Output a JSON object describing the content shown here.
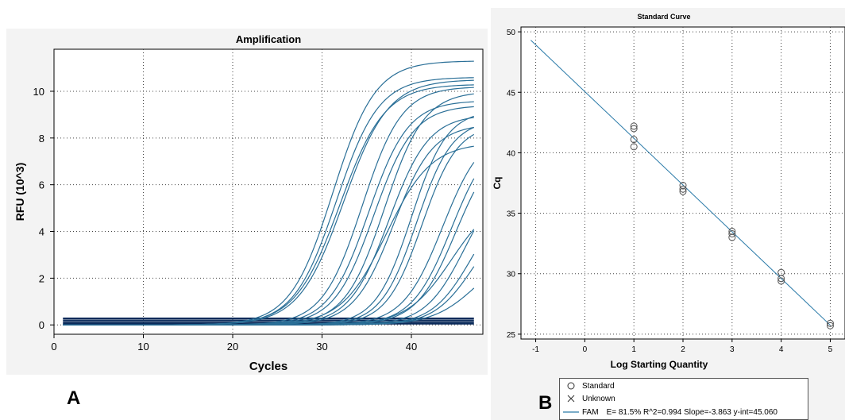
{
  "chart_data": [
    {
      "type": "line",
      "title": "Amplification",
      "xlabel": "Cycles",
      "ylabel": "RFU (10^3)",
      "xlim": [
        0,
        48
      ],
      "ylim": [
        -0.4,
        11.8
      ],
      "xticks": [
        0,
        10,
        20,
        30,
        40
      ],
      "yticks": [
        0,
        2,
        4,
        6,
        8,
        10
      ],
      "grid": true,
      "line_color": "#2a6f97",
      "baseline_color": "#0a2a5a",
      "curves": [
        {
          "midpoint": 31.2,
          "plateau": 11.3,
          "steepness": 0.42
        },
        {
          "midpoint": 31.6,
          "plateau": 10.6,
          "steepness": 0.42
        },
        {
          "midpoint": 32.0,
          "plateau": 10.3,
          "steepness": 0.4
        },
        {
          "midpoint": 32.4,
          "plateau": 10.5,
          "steepness": 0.4
        },
        {
          "midpoint": 34.5,
          "plateau": 10.2,
          "steepness": 0.45
        },
        {
          "midpoint": 35.2,
          "plateau": 9.6,
          "steepness": 0.45
        },
        {
          "midpoint": 35.8,
          "plateau": 9.4,
          "steepness": 0.45
        },
        {
          "midpoint": 37.0,
          "plateau": 10.0,
          "steepness": 0.45
        },
        {
          "midpoint": 37.5,
          "plateau": 9.0,
          "steepness": 0.45
        },
        {
          "midpoint": 38.0,
          "plateau": 8.6,
          "steepness": 0.45
        },
        {
          "midpoint": 37.2,
          "plateau": 7.8,
          "steepness": 0.4
        },
        {
          "midpoint": 40.0,
          "plateau": 9.2,
          "steepness": 0.5
        },
        {
          "midpoint": 40.6,
          "plateau": 8.8,
          "steepness": 0.5
        },
        {
          "midpoint": 41.2,
          "plateau": 8.6,
          "steepness": 0.5
        },
        {
          "midpoint": 43.5,
          "plateau": 8.4,
          "steepness": 0.45
        },
        {
          "midpoint": 44.5,
          "plateau": 8.3,
          "steepness": 0.45
        },
        {
          "midpoint": 45.0,
          "plateau": 8.0,
          "steepness": 0.45
        },
        {
          "midpoint": 44.5,
          "plateau": 5.6,
          "steepness": 0.4
        },
        {
          "midpoint": 46.0,
          "plateau": 6.6,
          "steepness": 0.45
        },
        {
          "midpoint": 46.8,
          "plateau": 5.8,
          "steepness": 0.45
        },
        {
          "midpoint": 47.0,
          "plateau": 5.0,
          "steepness": 0.45
        },
        {
          "midpoint": 47.5,
          "plateau": 3.5,
          "steepness": 0.4
        }
      ],
      "baselines": [
        0.05,
        0.12,
        0.2,
        0.28
      ]
    },
    {
      "type": "scatter",
      "title": "Standard Curve",
      "xlabel": "Log Starting Quantity",
      "ylabel": "Cq",
      "xlim": [
        -1.3,
        5.3
      ],
      "ylim": [
        24.6,
        50.4
      ],
      "xticks": [
        -1,
        0,
        1,
        2,
        3,
        4,
        5
      ],
      "yticks": [
        25,
        30,
        35,
        40,
        45,
        50
      ],
      "grid": true,
      "line_color": "#2a7aa8",
      "fit_line": {
        "x_start": -1.1,
        "x_end": 5.0,
        "slope": -3.863,
        "intercept": 45.06
      },
      "points": [
        {
          "x": 1,
          "y": 42.2
        },
        {
          "x": 1,
          "y": 42.0
        },
        {
          "x": 1,
          "y": 41.1
        },
        {
          "x": 1,
          "y": 40.5
        },
        {
          "x": 2,
          "y": 37.3
        },
        {
          "x": 2,
          "y": 37.0
        },
        {
          "x": 2,
          "y": 36.8
        },
        {
          "x": 3,
          "y": 33.5
        },
        {
          "x": 3,
          "y": 33.3
        },
        {
          "x": 3,
          "y": 33.0
        },
        {
          "x": 4,
          "y": 30.1
        },
        {
          "x": 4,
          "y": 29.6
        },
        {
          "x": 4,
          "y": 29.4
        },
        {
          "x": 5,
          "y": 25.9
        },
        {
          "x": 5,
          "y": 25.7
        }
      ],
      "legend": {
        "standard_label": "Standard",
        "unknown_label": "Unknown",
        "series_label": "FAM",
        "stats": "E= 81.5% R^2=0.994 Slope=-3.863 y-int=45.060"
      }
    }
  ],
  "panel_labels": {
    "a": "A",
    "b": "B"
  }
}
